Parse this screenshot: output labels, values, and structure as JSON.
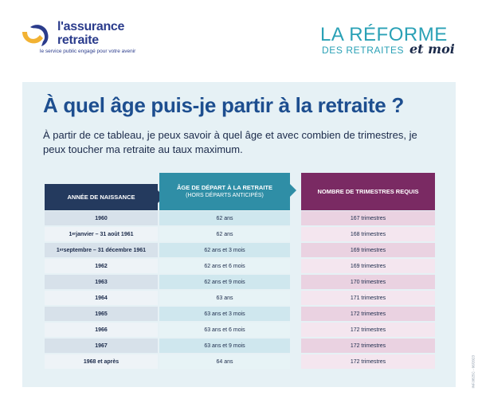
{
  "brand": {
    "logo_line1": "l'assurance",
    "logo_line2": "retraite",
    "logo_tagline": "le service public engagé pour votre avenir",
    "colors": {
      "navy": "#2b3c8c",
      "gold": "#f2b233"
    }
  },
  "campaign": {
    "line1": "LA RÉFORME",
    "line2": "DES RETRAITES",
    "line3": "et moi"
  },
  "title": "À quel âge puis-je partir à la retraite ?",
  "intro": "À partir de ce tableau, je peux savoir à quel âge et avec combien de trimestres, je peux toucher ma retraite au taux maximum.",
  "table": {
    "headers": {
      "col1": "ANNÉE DE NAISSANCE",
      "col2": "ÂGE DE DÉPART À LA RETRAITE",
      "col2_sub": "(HORS DÉPARTS ANTICIPÉS)",
      "col3": "NOMBRE DE TRIMESTRES REQUIS"
    },
    "rows": [
      {
        "year": "1960",
        "age": "62 ans",
        "quarters": "167 trimestres"
      },
      {
        "year": "1er janvier – 31 août 1961",
        "age": "62 ans",
        "quarters": "168 trimestres"
      },
      {
        "year": "1er septembre – 31 décembre 1961",
        "age": "62 ans et 3 mois",
        "quarters": "169 trimestres"
      },
      {
        "year": "1962",
        "age": "62 ans et 6 mois",
        "quarters": "169 trimestres"
      },
      {
        "year": "1963",
        "age": "62 ans et 9 mois",
        "quarters": "170 trimestres"
      },
      {
        "year": "1964",
        "age": "63 ans",
        "quarters": "171 trimestres"
      },
      {
        "year": "1965",
        "age": "63 ans et 3 mois",
        "quarters": "172 trimestres"
      },
      {
        "year": "1966",
        "age": "63 ans et 6 mois",
        "quarters": "172 trimestres"
      },
      {
        "year": "1967",
        "age": "63 ans et 9 mois",
        "quarters": "172 trimestres"
      },
      {
        "year": "1968 et après",
        "age": "64 ans",
        "quarters": "172 trimestres"
      }
    ]
  },
  "reference": "INF.0825C - 06/2023"
}
